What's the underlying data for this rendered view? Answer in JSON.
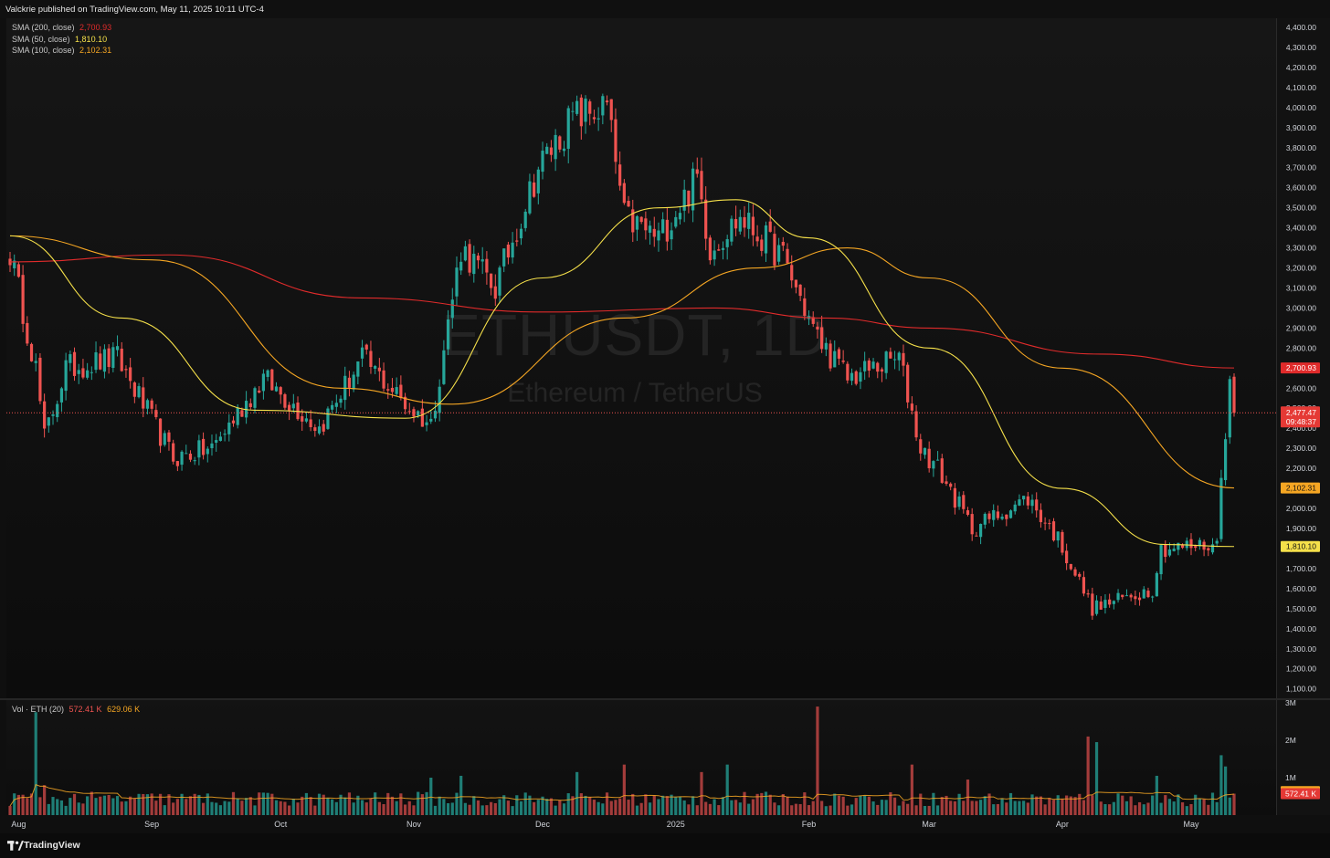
{
  "header": {
    "publisher_text": "Valckrie published on TradingView.com, May 11, 2025 10:11 UTC-4"
  },
  "watermark": {
    "symbol": "ETHUSDT, 1D",
    "description": "Ethereum / TetherUS"
  },
  "legend": {
    "sma200": {
      "label": "SMA (200, close)",
      "value": "2,700.93",
      "color": "#e02b2b"
    },
    "sma50": {
      "label": "SMA (50, close)",
      "value": "1,810.10",
      "color": "#f5e04a"
    },
    "sma100": {
      "label": "SMA (100, close)",
      "value": "2,102.31",
      "color": "#f5a623"
    },
    "volume": {
      "label": "Vol · ETH (20)",
      "value1": "572.41 K",
      "value2": "629.06 K"
    }
  },
  "price_badges": {
    "sma200": "2,700.93",
    "last": "2,477.47",
    "countdown": "09:48:37",
    "sma100": "2,102.31",
    "sma50": "1,810.10",
    "vol_ma": "629.06 K",
    "vol_last": "572.41 K"
  },
  "footer": {
    "brand": "TradingView"
  },
  "colors": {
    "up": "#26a69a",
    "down": "#ef5350",
    "background": "#0f0f0f"
  },
  "chart_data": [
    {
      "type": "candlestick",
      "title": "ETHUSDT, 1D",
      "subtitle": "Ethereum / TetherUS",
      "ylim": [
        1050,
        4450
      ],
      "y_ticks": [
        "1,100.00",
        "1,200.00",
        "1,300.00",
        "1,400.00",
        "1,500.00",
        "1,600.00",
        "1,700.00",
        "1,800.00",
        "1,900.00",
        "2,000.00",
        "2,100.00",
        "2,200.00",
        "2,300.00",
        "2,400.00",
        "2,500.00",
        "2,600.00",
        "2,700.00",
        "2,800.00",
        "2,900.00",
        "3,000.00",
        "3,100.00",
        "3,200.00",
        "3,300.00",
        "3,400.00",
        "3,500.00",
        "3,600.00",
        "3,700.00",
        "3,800.00",
        "3,900.00",
        "4,000.00",
        "4,100.00",
        "4,200.00",
        "4,300.00",
        "4,400.00"
      ],
      "x_ticks": [
        "Aug",
        "Sep",
        "Oct",
        "Nov",
        "Dec",
        "2025",
        "Feb",
        "Mar",
        "Apr",
        "May"
      ],
      "date_range": [
        "2024-07-30",
        "2025-05-11"
      ],
      "last_price": 2477.47,
      "close_anchors": [
        {
          "date": "2024-07-30",
          "close": 3280
        },
        {
          "date": "2024-08-05",
          "close": 2700
        },
        {
          "date": "2024-08-07",
          "close": 2350
        },
        {
          "date": "2024-08-12",
          "close": 2700
        },
        {
          "date": "2024-08-24",
          "close": 2750
        },
        {
          "date": "2024-09-06",
          "close": 2250
        },
        {
          "date": "2024-09-15",
          "close": 2300
        },
        {
          "date": "2024-09-27",
          "close": 2650
        },
        {
          "date": "2024-10-10",
          "close": 2400
        },
        {
          "date": "2024-10-20",
          "close": 2750
        },
        {
          "date": "2024-10-31",
          "close": 2500
        },
        {
          "date": "2024-11-05",
          "close": 2420
        },
        {
          "date": "2024-11-12",
          "close": 3300
        },
        {
          "date": "2024-11-20",
          "close": 3100
        },
        {
          "date": "2024-11-30",
          "close": 3700
        },
        {
          "date": "2024-12-08",
          "close": 3950
        },
        {
          "date": "2024-12-16",
          "close": 4000
        },
        {
          "date": "2024-12-20",
          "close": 3450
        },
        {
          "date": "2024-12-28",
          "close": 3350
        },
        {
          "date": "2025-01-06",
          "close": 3650
        },
        {
          "date": "2025-01-09",
          "close": 3300
        },
        {
          "date": "2025-01-16",
          "close": 3450
        },
        {
          "date": "2025-01-26",
          "close": 3250
        },
        {
          "date": "2025-02-03",
          "close": 2850
        },
        {
          "date": "2025-02-10",
          "close": 2650
        },
        {
          "date": "2025-02-22",
          "close": 2750
        },
        {
          "date": "2025-02-27",
          "close": 2300
        },
        {
          "date": "2025-03-03",
          "close": 2200
        },
        {
          "date": "2025-03-11",
          "close": 1900
        },
        {
          "date": "2025-03-24",
          "close": 2050
        },
        {
          "date": "2025-03-31",
          "close": 1850
        },
        {
          "date": "2025-04-08",
          "close": 1500
        },
        {
          "date": "2025-04-22",
          "close": 1600
        },
        {
          "date": "2025-04-24",
          "close": 1800
        },
        {
          "date": "2025-05-07",
          "close": 1820
        },
        {
          "date": "2025-05-08",
          "close": 2200
        },
        {
          "date": "2025-05-10",
          "close": 2600
        },
        {
          "date": "2025-05-11",
          "close": 2477
        }
      ],
      "series": [
        {
          "name": "SMA (200, close)",
          "points": [
            {
              "date": "2024-07-30",
              "value": 3230
            },
            {
              "date": "2024-09-05",
              "value": 3265
            },
            {
              "date": "2024-10-20",
              "value": 3050
            },
            {
              "date": "2024-12-01",
              "value": 2980
            },
            {
              "date": "2025-01-10",
              "value": 3000
            },
            {
              "date": "2025-02-05",
              "value": 2950
            },
            {
              "date": "2025-03-01",
              "value": 2900
            },
            {
              "date": "2025-04-10",
              "value": 2770
            },
            {
              "date": "2025-05-11",
              "value": 2700.93
            }
          ]
        },
        {
          "name": "SMA (100, close)",
          "points": [
            {
              "date": "2024-07-30",
              "value": 3360
            },
            {
              "date": "2024-09-01",
              "value": 3240
            },
            {
              "date": "2024-10-15",
              "value": 2600
            },
            {
              "date": "2024-11-10",
              "value": 2520
            },
            {
              "date": "2024-12-20",
              "value": 2950
            },
            {
              "date": "2025-01-20",
              "value": 3200
            },
            {
              "date": "2025-02-10",
              "value": 3300
            },
            {
              "date": "2025-03-01",
              "value": 3150
            },
            {
              "date": "2025-04-01",
              "value": 2700
            },
            {
              "date": "2025-05-11",
              "value": 2102.31
            }
          ]
        },
        {
          "name": "SMA (50, close)",
          "points": [
            {
              "date": "2024-07-30",
              "value": 3360
            },
            {
              "date": "2024-08-25",
              "value": 2950
            },
            {
              "date": "2024-09-25",
              "value": 2490
            },
            {
              "date": "2024-10-30",
              "value": 2450
            },
            {
              "date": "2024-12-01",
              "value": 3150
            },
            {
              "date": "2024-12-28",
              "value": 3500
            },
            {
              "date": "2025-01-15",
              "value": 3540
            },
            {
              "date": "2025-02-01",
              "value": 3350
            },
            {
              "date": "2025-03-01",
              "value": 2800
            },
            {
              "date": "2025-04-01",
              "value": 2100
            },
            {
              "date": "2025-04-25",
              "value": 1820
            },
            {
              "date": "2025-05-11",
              "value": 1810.1
            }
          ]
        }
      ]
    },
    {
      "type": "bar",
      "title": "Vol · ETH (20)",
      "ylim": [
        0,
        3000000
      ],
      "y_ticks": [
        "1M",
        "2M",
        "3M"
      ],
      "base_volume": 430000,
      "volume_ma_last": 629060,
      "volume_last": 572410,
      "spikes": [
        {
          "date": "2024-08-05",
          "value": 2750000
        },
        {
          "date": "2024-08-07",
          "value": 800000
        },
        {
          "date": "2024-11-05",
          "value": 1000000
        },
        {
          "date": "2024-11-12",
          "value": 1050000
        },
        {
          "date": "2024-12-09",
          "value": 1150000
        },
        {
          "date": "2024-12-20",
          "value": 1350000
        },
        {
          "date": "2025-01-07",
          "value": 1150000
        },
        {
          "date": "2025-01-13",
          "value": 1350000
        },
        {
          "date": "2025-02-03",
          "value": 2900000
        },
        {
          "date": "2025-02-25",
          "value": 1350000
        },
        {
          "date": "2025-03-10",
          "value": 950000
        },
        {
          "date": "2025-04-07",
          "value": 2100000
        },
        {
          "date": "2025-04-09",
          "value": 1950000
        },
        {
          "date": "2025-04-23",
          "value": 1050000
        },
        {
          "date": "2025-05-08",
          "value": 1600000
        },
        {
          "date": "2025-05-09",
          "value": 1300000
        }
      ]
    }
  ]
}
